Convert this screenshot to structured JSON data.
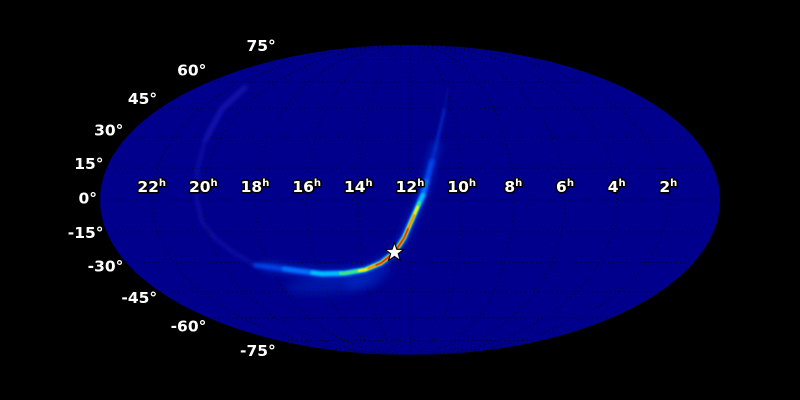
{
  "page": {
    "background_color": "#000000"
  },
  "chart_data": {
    "type": "heatmap",
    "subtype": "sky-localization-probability-map",
    "projection": "mollweide",
    "title": "",
    "colormap": "jet",
    "map_background_color": "#00008c",
    "frame_background_color": "#000000",
    "grid_style": "dotted",
    "grid_color": "#000000",
    "ra_axis": {
      "unit_superscript": "h",
      "ticks": [
        {
          "value": 22,
          "label": "22"
        },
        {
          "value": 20,
          "label": "20"
        },
        {
          "value": 18,
          "label": "18"
        },
        {
          "value": 16,
          "label": "16"
        },
        {
          "value": 14,
          "label": "14"
        },
        {
          "value": 12,
          "label": "12"
        },
        {
          "value": 10,
          "label": "10"
        },
        {
          "value": 8,
          "label": "8"
        },
        {
          "value": 6,
          "label": "6"
        },
        {
          "value": 4,
          "label": "4"
        },
        {
          "value": 2,
          "label": "2"
        }
      ]
    },
    "dec_axis": {
      "ticks": [
        {
          "value": 75,
          "label": "75°"
        },
        {
          "value": 60,
          "label": "60°"
        },
        {
          "value": 45,
          "label": "45°"
        },
        {
          "value": 30,
          "label": "30°"
        },
        {
          "value": 15,
          "label": "15°"
        },
        {
          "value": 0,
          "label": "0°"
        },
        {
          "value": -15,
          "label": "-15°"
        },
        {
          "value": -30,
          "label": "-30°"
        },
        {
          "value": -45,
          "label": "-45°"
        },
        {
          "value": -60,
          "label": "-60°"
        },
        {
          "value": -75,
          "label": "-75°"
        }
      ]
    },
    "star_marker": {
      "ra_hours": 12.64,
      "dec_degrees": -25.0,
      "color": "#ffffff",
      "outline_color": "#000000"
    },
    "probability_band": {
      "bright_arc_ra_dec": [
        [
          9.87,
          56.4
        ],
        [
          10.47,
          41.4
        ],
        [
          10.92,
          26.2
        ],
        [
          11.25,
          13.2
        ],
        [
          11.5,
          2.4
        ],
        [
          11.84,
          -7.1
        ],
        [
          12.24,
          -18.0
        ],
        [
          12.64,
          -25.0
        ],
        [
          13.23,
          -30.2
        ],
        [
          13.95,
          -33.6
        ],
        [
          14.85,
          -35.3
        ],
        [
          15.88,
          -35.7
        ],
        [
          16.88,
          -34.1
        ],
        [
          17.82,
          -32.5
        ],
        [
          18.6,
          -31.3
        ]
      ],
      "faint_arc_ra_dec": [
        [
          21.3,
          56.9
        ],
        [
          21.0,
          44.5
        ],
        [
          20.6,
          28.8
        ],
        [
          20.4,
          14.2
        ],
        [
          20.26,
          0.6
        ],
        [
          20.13,
          -10.4
        ],
        [
          19.79,
          -18.0
        ],
        [
          19.27,
          -24.8
        ],
        [
          18.76,
          -29.7
        ],
        [
          18.6,
          -31.3
        ]
      ],
      "colors_low_to_high": [
        "#00008c",
        "#0055ff",
        "#00c8ff",
        "#3fe77f",
        "#ffee00",
        "#ff7700",
        "#dd1100"
      ]
    }
  }
}
